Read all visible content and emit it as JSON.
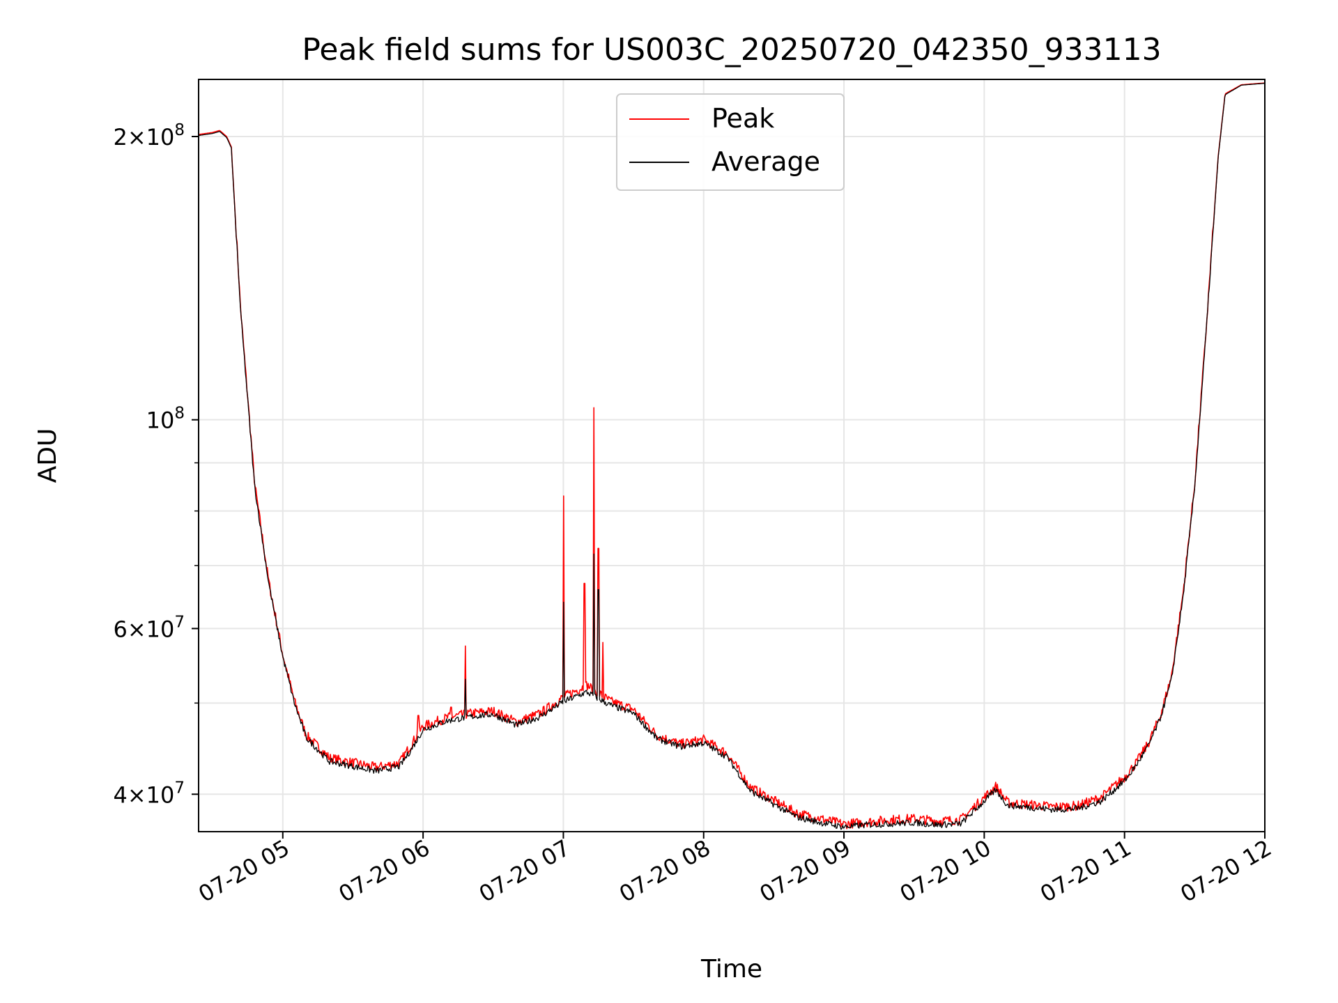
{
  "chart_data": {
    "type": "line",
    "title": "Peak field sums for US003C_20250720_042350_933113",
    "xlabel": "Time",
    "ylabel": "ADU",
    "yscale": "log",
    "xlim": [
      "07-20 04:24",
      "07-20 12:00"
    ],
    "ylim": [
      36500000,
      230000000
    ],
    "grid": true,
    "legend_position": "top-center",
    "x_ticks": [
      "07-20 05",
      "07-20 06",
      "07-20 07",
      "07-20 08",
      "07-20 09",
      "07-20 10",
      "07-20 11",
      "07-20 12"
    ],
    "y_ticks": [
      {
        "value": 40000000,
        "mantissa": "4",
        "exp": "7"
      },
      {
        "value": 60000000,
        "mantissa": "6",
        "exp": "7"
      },
      {
        "value": 100000000,
        "mantissa": "",
        "exp": "8"
      },
      {
        "value": 200000000,
        "mantissa": "2",
        "exp": "8"
      }
    ],
    "y_minor_ticks": [
      50000000,
      70000000,
      80000000,
      90000000
    ],
    "x": [
      "04:24",
      "04:30",
      "04:33",
      "04:36",
      "04:38",
      "04:42",
      "04:48",
      "04:54",
      "05:00",
      "05:05",
      "05:10",
      "05:20",
      "05:30",
      "05:40",
      "05:50",
      "05:55",
      "06:00",
      "06:10",
      "06:20",
      "06:30",
      "06:40",
      "06:50",
      "07:00",
      "07:10",
      "07:20",
      "07:30",
      "07:40",
      "07:50",
      "08:00",
      "08:10",
      "08:20",
      "08:30",
      "08:40",
      "08:50",
      "09:00",
      "09:10",
      "09:20",
      "09:30",
      "09:40",
      "09:50",
      "10:00",
      "10:05",
      "10:10",
      "10:20",
      "10:30",
      "10:40",
      "10:50",
      "11:00",
      "11:05",
      "11:10",
      "11:15",
      "11:20",
      "11:25",
      "11:30",
      "11:35",
      "11:40",
      "11:43",
      "11:50",
      "12:00"
    ],
    "series": [
      {
        "name": "Peak",
        "color": "#ff0000",
        "values": [
          201000000,
          202000000,
          203000000,
          200000000,
          195000000,
          130000000,
          85000000,
          67000000,
          56000000,
          50000000,
          46000000,
          43500000,
          43000000,
          42500000,
          43000000,
          45000000,
          47000000,
          48000000,
          48500000,
          48800000,
          47500000,
          48500000,
          50500000,
          52000000,
          50000000,
          49000000,
          46000000,
          45000000,
          45500000,
          44000000,
          40500000,
          39200000,
          38000000,
          37500000,
          37000000,
          37200000,
          37400000,
          37500000,
          37300000,
          37400000,
          39500000,
          40600000,
          39000000,
          38800000,
          38600000,
          38700000,
          39500000,
          41500000,
          43000000,
          45000000,
          48000000,
          53000000,
          65000000,
          85000000,
          125000000,
          190000000,
          222000000,
          227000000,
          228000000
        ],
        "spikes": [
          {
            "x": "06:18",
            "value": 57500000
          },
          {
            "x": "07:00",
            "value": 83000000
          },
          {
            "x": "07:09",
            "value": 67000000
          },
          {
            "x": "07:13",
            "value": 103000000
          },
          {
            "x": "07:15",
            "value": 73000000
          },
          {
            "x": "05:58",
            "value": 48500000
          },
          {
            "x": "06:12",
            "value": 49500000
          },
          {
            "x": "07:17",
            "value": 58000000
          }
        ]
      },
      {
        "name": "Average",
        "color": "#000000",
        "values": [
          200500000,
          201500000,
          202500000,
          199500000,
          194500000,
          129500000,
          84500000,
          66800000,
          55800000,
          49800000,
          45800000,
          43200000,
          42700000,
          42200000,
          42700000,
          44500000,
          46700000,
          47700000,
          48200000,
          48500000,
          47200000,
          48200000,
          50000000,
          51200000,
          49600000,
          48600000,
          45700000,
          44800000,
          45200000,
          43700000,
          40200000,
          38900000,
          37700000,
          37200000,
          36800000,
          37000000,
          37100000,
          37200000,
          37000000,
          37100000,
          39200000,
          40300000,
          38800000,
          38600000,
          38400000,
          38500000,
          39200000,
          41200000,
          42800000,
          44800000,
          47800000,
          52600000,
          64500000,
          84500000,
          124500000,
          189500000,
          221500000,
          226800000,
          227800000
        ],
        "spikes": [
          {
            "x": "06:18",
            "value": 53000000
          },
          {
            "x": "07:00",
            "value": 64000000
          },
          {
            "x": "07:13",
            "value": 72000000
          },
          {
            "x": "07:15",
            "value": 66000000
          }
        ]
      }
    ]
  }
}
